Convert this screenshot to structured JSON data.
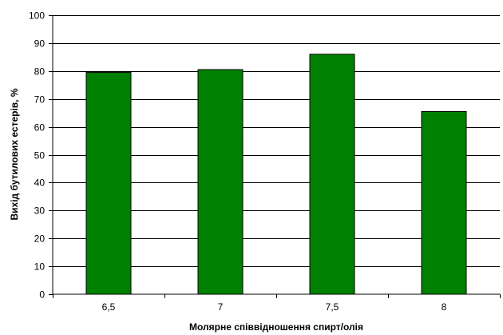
{
  "chart_data": {
    "type": "bar",
    "title": "",
    "xlabel": "Молярне співвідношення спирт/олія",
    "ylabel": "Вихід бутилових естерів, %",
    "categories": [
      "6,5",
      "7",
      "7,5",
      "8"
    ],
    "values": [
      79.5,
      80.5,
      86,
      65.5
    ],
    "ylim": [
      0,
      100
    ],
    "yticks": [
      "0",
      "10",
      "20",
      "30",
      "40",
      "50",
      "60",
      "70",
      "80",
      "90",
      "100"
    ],
    "grid": true,
    "legend": "none",
    "bar_color": "#008000",
    "bar_edge_color": "#000000"
  }
}
